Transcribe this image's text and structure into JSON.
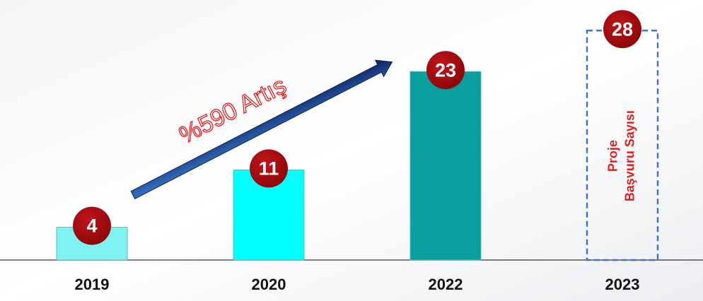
{
  "chart_data": {
    "type": "bar",
    "categories": [
      "2019",
      "2020",
      "2022",
      "2023"
    ],
    "values": [
      4,
      11,
      23,
      28
    ],
    "colors": [
      "#7ff3f3",
      "#00ffff",
      "#0a9e9e",
      "none"
    ],
    "styles": [
      "solid",
      "solid",
      "solid",
      "dashed"
    ],
    "ylim": [
      0,
      30
    ],
    "annotation": "%590 Artış",
    "bar_note": [
      "Proje",
      "Başvuru Sayısı"
    ]
  }
}
